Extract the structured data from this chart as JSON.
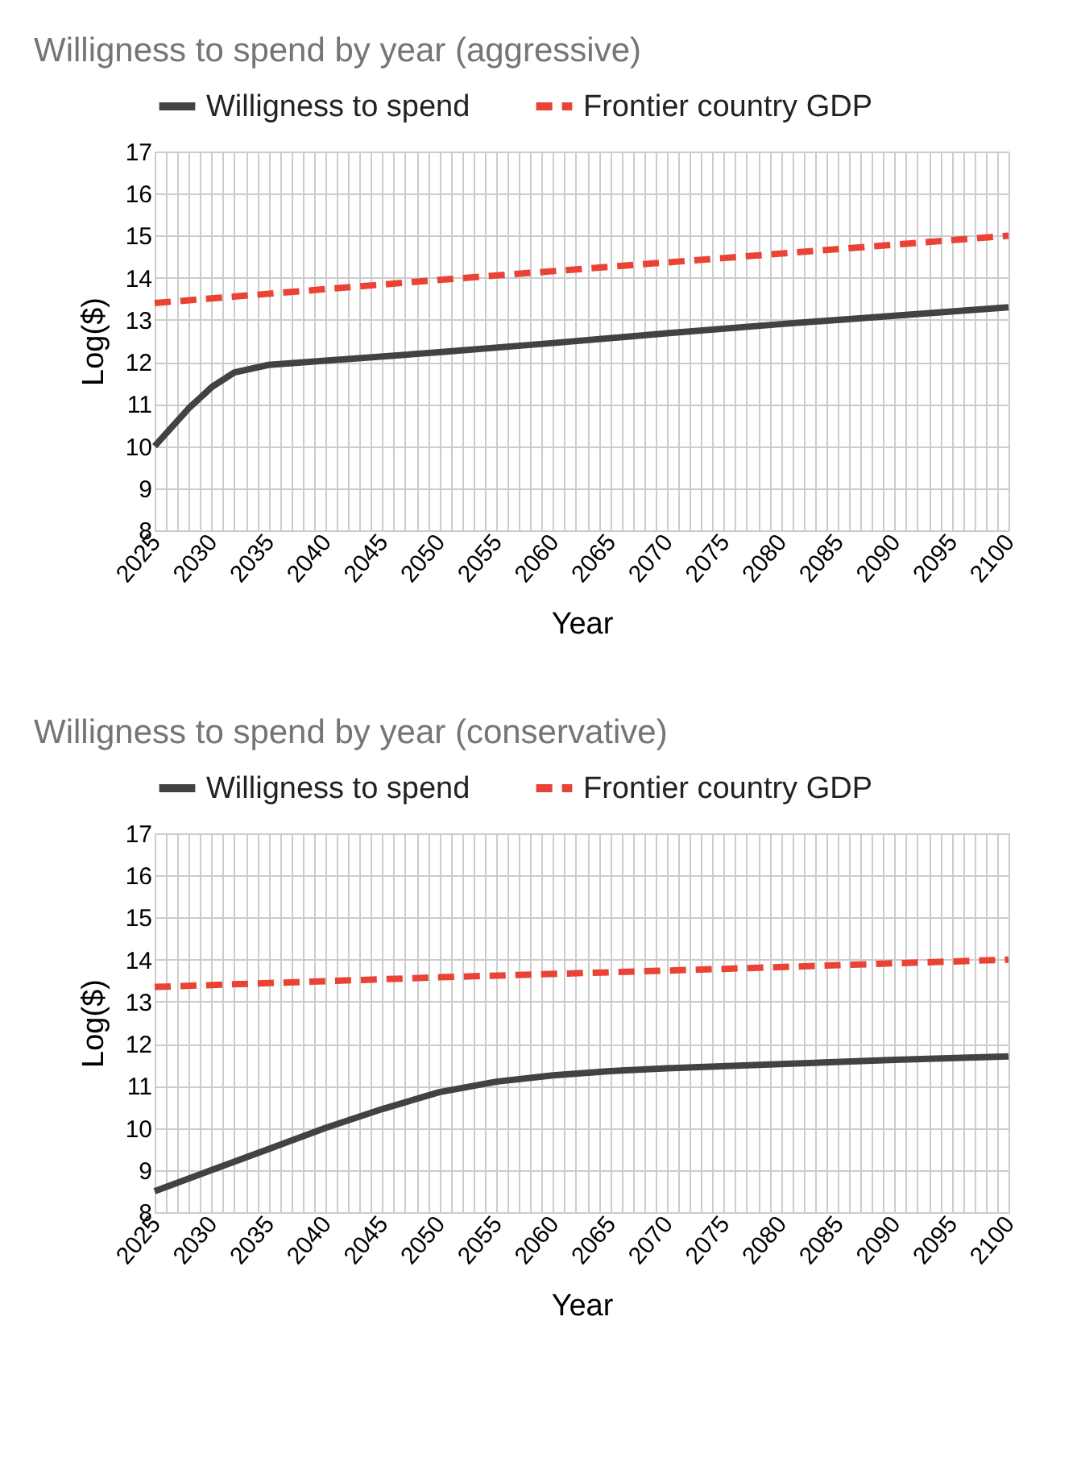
{
  "chart_data": [
    {
      "type": "line",
      "title": "Willigness to spend by year (aggressive)",
      "xlabel": "Year",
      "ylabel": "Log($)",
      "legend": "top",
      "grid": true,
      "marker": "none",
      "xlim": [
        2025,
        2100
      ],
      "ylim": [
        8,
        17
      ],
      "yticks": [
        8,
        9,
        10,
        11,
        12,
        13,
        14,
        15,
        16,
        17
      ],
      "xticks": [
        2025,
        {
          "value": 2026,
          "label": null
        },
        {
          "value": 2027,
          "label": null
        },
        {
          "value": 2028,
          "label": null
        },
        {
          "value": 2029,
          "label": null
        },
        2030,
        {
          "value": 2031,
          "label": null
        },
        {
          "value": 2032,
          "label": null
        },
        {
          "value": 2033,
          "label": null
        },
        {
          "value": 2034,
          "label": null
        },
        2035,
        {
          "value": 2036,
          "label": null
        },
        {
          "value": 2037,
          "label": null
        },
        {
          "value": 2038,
          "label": null
        },
        {
          "value": 2039,
          "label": null
        },
        2040,
        {
          "value": 2041,
          "label": null
        },
        {
          "value": 2042,
          "label": null
        },
        {
          "value": 2043,
          "label": null
        },
        {
          "value": 2044,
          "label": null
        },
        2045,
        {
          "value": 2046,
          "label": null
        },
        {
          "value": 2047,
          "label": null
        },
        {
          "value": 2048,
          "label": null
        },
        {
          "value": 2049,
          "label": null
        },
        2050,
        {
          "value": 2051,
          "label": null
        },
        {
          "value": 2052,
          "label": null
        },
        {
          "value": 2053,
          "label": null
        },
        {
          "value": 2054,
          "label": null
        },
        2055,
        {
          "value": 2056,
          "label": null
        },
        {
          "value": 2057,
          "label": null
        },
        {
          "value": 2058,
          "label": null
        },
        {
          "value": 2059,
          "label": null
        },
        2060,
        {
          "value": 2061,
          "label": null
        },
        {
          "value": 2062,
          "label": null
        },
        {
          "value": 2063,
          "label": null
        },
        {
          "value": 2064,
          "label": null
        },
        2065,
        {
          "value": 2066,
          "label": null
        },
        {
          "value": 2067,
          "label": null
        },
        {
          "value": 2068,
          "label": null
        },
        {
          "value": 2069,
          "label": null
        },
        2070,
        {
          "value": 2071,
          "label": null
        },
        {
          "value": 2072,
          "label": null
        },
        {
          "value": 2073,
          "label": null
        },
        {
          "value": 2074,
          "label": null
        },
        2075,
        {
          "value": 2076,
          "label": null
        },
        {
          "value": 2077,
          "label": null
        },
        {
          "value": 2078,
          "label": null
        },
        {
          "value": 2079,
          "label": null
        },
        2080,
        {
          "value": 2081,
          "label": null
        },
        {
          "value": 2082,
          "label": null
        },
        {
          "value": 2083,
          "label": null
        },
        {
          "value": 2084,
          "label": null
        },
        2085,
        {
          "value": 2086,
          "label": null
        },
        {
          "value": 2087,
          "label": null
        },
        {
          "value": 2088,
          "label": null
        },
        {
          "value": 2089,
          "label": null
        },
        2090,
        {
          "value": 2091,
          "label": null
        },
        {
          "value": 2092,
          "label": null
        },
        {
          "value": 2093,
          "label": null
        },
        {
          "value": 2094,
          "label": null
        },
        2095,
        {
          "value": 2096,
          "label": null
        },
        {
          "value": 2097,
          "label": null
        },
        {
          "value": 2098,
          "label": null
        },
        {
          "value": 2099,
          "label": null
        },
        2100
      ],
      "series": [
        {
          "name": "Willigness to spend",
          "color": "#424242",
          "line_style": "solid",
          "x": [
            2025,
            2026,
            2028,
            2030,
            2032,
            2035,
            2040,
            2050,
            2060,
            2070,
            2080,
            2090,
            2100
          ],
          "values": [
            10.0,
            10.3,
            10.9,
            11.4,
            11.75,
            11.93,
            12.03,
            12.23,
            12.45,
            12.68,
            12.9,
            13.1,
            13.3
          ]
        },
        {
          "name": "Frontier country GDP",
          "color": "#ea4335",
          "line_style": "dashed",
          "x": [
            2025,
            2050,
            2075,
            2100
          ],
          "values": [
            13.4,
            13.95,
            14.47,
            15.0
          ]
        }
      ]
    },
    {
      "type": "line",
      "title": "Willigness to spend by year (conservative)",
      "xlabel": "Year",
      "ylabel": "Log($)",
      "legend": "top",
      "grid": true,
      "marker": "none",
      "xlim": [
        2025,
        2100
      ],
      "ylim": [
        8,
        17
      ],
      "yticks": [
        8,
        9,
        10,
        11,
        12,
        13,
        14,
        15,
        16,
        17
      ],
      "xticks": [
        2025,
        {
          "value": 2026,
          "label": null
        },
        {
          "value": 2027,
          "label": null
        },
        {
          "value": 2028,
          "label": null
        },
        {
          "value": 2029,
          "label": null
        },
        2030,
        {
          "value": 2031,
          "label": null
        },
        {
          "value": 2032,
          "label": null
        },
        {
          "value": 2033,
          "label": null
        },
        {
          "value": 2034,
          "label": null
        },
        2035,
        {
          "value": 2036,
          "label": null
        },
        {
          "value": 2037,
          "label": null
        },
        {
          "value": 2038,
          "label": null
        },
        {
          "value": 2039,
          "label": null
        },
        2040,
        {
          "value": 2041,
          "label": null
        },
        {
          "value": 2042,
          "label": null
        },
        {
          "value": 2043,
          "label": null
        },
        {
          "value": 2044,
          "label": null
        },
        2045,
        {
          "value": 2046,
          "label": null
        },
        {
          "value": 2047,
          "label": null
        },
        {
          "value": 2048,
          "label": null
        },
        {
          "value": 2049,
          "label": null
        },
        2050,
        {
          "value": 2051,
          "label": null
        },
        {
          "value": 2052,
          "label": null
        },
        {
          "value": 2053,
          "label": null
        },
        {
          "value": 2054,
          "label": null
        },
        2055,
        {
          "value": 2056,
          "label": null
        },
        {
          "value": 2057,
          "label": null
        },
        {
          "value": 2058,
          "label": null
        },
        {
          "value": 2059,
          "label": null
        },
        2060,
        {
          "value": 2061,
          "label": null
        },
        {
          "value": 2062,
          "label": null
        },
        {
          "value": 2063,
          "label": null
        },
        {
          "value": 2064,
          "label": null
        },
        2065,
        {
          "value": 2066,
          "label": null
        },
        {
          "value": 2067,
          "label": null
        },
        {
          "value": 2068,
          "label": null
        },
        {
          "value": 2069,
          "label": null
        },
        2070,
        {
          "value": 2071,
          "label": null
        },
        {
          "value": 2072,
          "label": null
        },
        {
          "value": 2073,
          "label": null
        },
        {
          "value": 2074,
          "label": null
        },
        2075,
        {
          "value": 2076,
          "label": null
        },
        {
          "value": 2077,
          "label": null
        },
        {
          "value": 2078,
          "label": null
        },
        {
          "value": 2079,
          "label": null
        },
        2080,
        {
          "value": 2081,
          "label": null
        },
        {
          "value": 2082,
          "label": null
        },
        {
          "value": 2083,
          "label": null
        },
        {
          "value": 2084,
          "label": null
        },
        2085,
        {
          "value": 2086,
          "label": null
        },
        {
          "value": 2087,
          "label": null
        },
        {
          "value": 2088,
          "label": null
        },
        {
          "value": 2089,
          "label": null
        },
        2090,
        {
          "value": 2091,
          "label": null
        },
        {
          "value": 2092,
          "label": null
        },
        {
          "value": 2093,
          "label": null
        },
        {
          "value": 2094,
          "label": null
        },
        2095,
        {
          "value": 2096,
          "label": null
        },
        {
          "value": 2097,
          "label": null
        },
        {
          "value": 2098,
          "label": null
        },
        {
          "value": 2099,
          "label": null
        },
        2100
      ],
      "series": [
        {
          "name": "Willigness to spend",
          "color": "#424242",
          "line_style": "solid",
          "x": [
            2025,
            2030,
            2035,
            2040,
            2045,
            2050,
            2055,
            2060,
            2065,
            2070,
            2080,
            2090,
            2100
          ],
          "values": [
            8.5,
            9.0,
            9.5,
            10.0,
            10.45,
            10.85,
            11.1,
            11.25,
            11.35,
            11.42,
            11.52,
            11.62,
            11.7
          ]
        },
        {
          "name": "Frontier country GDP",
          "color": "#ea4335",
          "line_style": "dashed",
          "x": [
            2025,
            2050,
            2075,
            2100
          ],
          "values": [
            13.35,
            13.58,
            13.78,
            14.0
          ]
        }
      ]
    }
  ]
}
